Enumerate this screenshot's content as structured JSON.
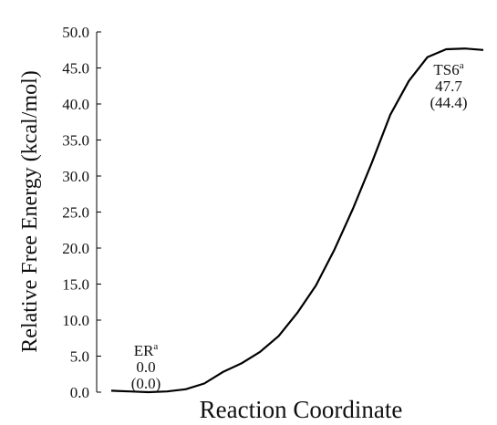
{
  "chart_data": {
    "type": "line",
    "ylabel": "Relative Free Energy (kcal/mol)",
    "xlabel": "Reaction Coordinate",
    "categories": [
      null,
      null,
      null,
      null,
      null,
      null,
      null,
      null,
      null,
      null,
      null,
      null,
      null,
      null,
      null,
      null,
      null,
      null,
      null,
      null,
      null
    ],
    "series": [
      {
        "name": null,
        "color": "#000000",
        "values": [
          0.2,
          0.1,
          0.0,
          0.1,
          0.4,
          1.2,
          2.8,
          4.0,
          5.6,
          7.8,
          11.0,
          14.8,
          19.8,
          25.5,
          31.8,
          38.5,
          43.2,
          46.5,
          47.6,
          47.7,
          47.5
        ]
      }
    ],
    "ylim": [
      0,
      50
    ],
    "yticks": [
      {
        "value": 0,
        "label": "0.0"
      },
      {
        "value": 5,
        "label": "5.0"
      },
      {
        "value": 10,
        "label": "10.0"
      },
      {
        "value": 15,
        "label": "15.0"
      },
      {
        "value": 20,
        "label": "20.0"
      },
      {
        "value": 25,
        "label": "25.0"
      },
      {
        "value": 30,
        "label": "30.0"
      },
      {
        "value": 35,
        "label": "35.0"
      },
      {
        "value": 40,
        "label": "40.0"
      },
      {
        "value": 45,
        "label": "45.0"
      },
      {
        "value": 50,
        "label": "50.0"
      }
    ],
    "annotations": [
      {
        "name": "ER",
        "sup": "a",
        "energy": "0.0",
        "paren": "(0.0)"
      },
      {
        "name": "TS6",
        "sup": "a",
        "energy": "47.7",
        "paren": "(44.4)"
      }
    ]
  }
}
